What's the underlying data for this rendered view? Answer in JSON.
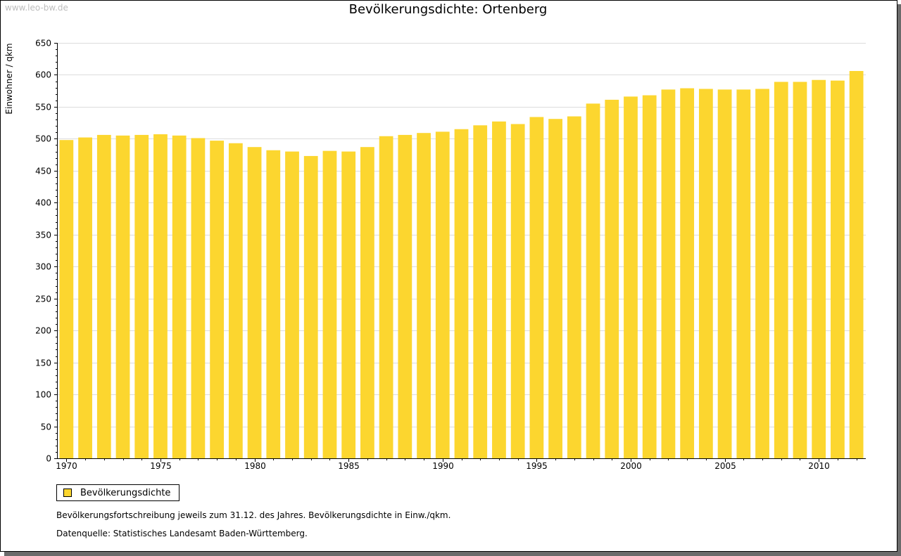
{
  "watermark": "www.leo-bw.de",
  "note": "Bevölkerungsfortschreibung jeweils zum 31.12. des Jahres. Bevölkerungsdichte in Einw./qkm.",
  "source": "Datenquelle: Statistisches Landesamt Baden-Württemberg.",
  "colors": {
    "bar": "#fcd62f",
    "grid": "#dcdcdc",
    "axis": "#000000"
  },
  "chart_data": {
    "type": "bar",
    "title": "Bevölkerungsdichte: Ortenberg",
    "xlabel": "",
    "ylabel": "Einwohner / qkm",
    "ylim": [
      0,
      650
    ],
    "yticks": [
      0,
      50,
      100,
      150,
      200,
      250,
      300,
      350,
      400,
      450,
      500,
      550,
      600,
      650
    ],
    "xtick_labels": [
      "1970",
      "1975",
      "1980",
      "1985",
      "1990",
      "1995",
      "2000",
      "2005",
      "2010"
    ],
    "grid": true,
    "legend_position": "bottom-left",
    "categories": [
      "1970",
      "1971",
      "1972",
      "1973",
      "1974",
      "1975",
      "1976",
      "1977",
      "1978",
      "1979",
      "1980",
      "1981",
      "1982",
      "1983",
      "1984",
      "1985",
      "1986",
      "1987",
      "1988",
      "1989",
      "1990",
      "1991",
      "1992",
      "1993",
      "1994",
      "1995",
      "1996",
      "1997",
      "1998",
      "1999",
      "2000",
      "2001",
      "2002",
      "2003",
      "2004",
      "2005",
      "2006",
      "2007",
      "2008",
      "2009",
      "2010",
      "2011",
      "2012"
    ],
    "series": [
      {
        "name": "Bevölkerungsdichte",
        "values": [
          498,
          502,
          506,
          505,
          506,
          507,
          505,
          501,
          497,
          493,
          487,
          482,
          480,
          473,
          481,
          480,
          487,
          504,
          506,
          509,
          511,
          515,
          521,
          527,
          523,
          534,
          531,
          535,
          555,
          561,
          566,
          568,
          577,
          579,
          578,
          577,
          577,
          578,
          589,
          589,
          592,
          591,
          606
        ]
      }
    ]
  }
}
